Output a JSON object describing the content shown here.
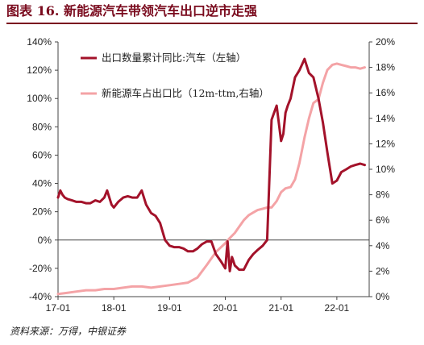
{
  "title": "图表 16. 新能源汽车带领汽车出口逆市走强",
  "source": "资料来源：万得，中银证券",
  "chart_data": {
    "type": "line",
    "x_tick_labels": [
      "17-01",
      "18-01",
      "19-01",
      "20-01",
      "21-01",
      "22-01"
    ],
    "y_left": {
      "min": -40,
      "max": 140,
      "step": 20,
      "unit": "%"
    },
    "y_right": {
      "min": 0,
      "max": 20,
      "step": 2,
      "unit": "%"
    },
    "grid": false,
    "legend_position": "top-center",
    "series": [
      {
        "name": "出口数量累计同比:汽车（左轴）",
        "axis": "left",
        "color": "#a3122a",
        "x": [
          2017.0,
          2017.04,
          2017.08,
          2017.12,
          2017.17,
          2017.25,
          2017.33,
          2017.42,
          2017.5,
          2017.58,
          2017.67,
          2017.75,
          2017.83,
          2017.88,
          2017.96,
          2018.0,
          2018.04,
          2018.08,
          2018.17,
          2018.25,
          2018.33,
          2018.42,
          2018.5,
          2018.58,
          2018.67,
          2018.75,
          2018.83,
          2018.92,
          2019.0,
          2019.08,
          2019.17,
          2019.25,
          2019.33,
          2019.42,
          2019.5,
          2019.58,
          2019.67,
          2019.75,
          2019.83,
          2019.92,
          2020.0,
          2020.04,
          2020.08,
          2020.12,
          2020.17,
          2020.25,
          2020.33,
          2020.42,
          2020.5,
          2020.58,
          2020.67,
          2020.75,
          2020.83,
          2020.92,
          2021.0,
          2021.04,
          2021.08,
          2021.12,
          2021.17,
          2021.25,
          2021.33,
          2021.42,
          2021.5,
          2021.58,
          2021.67,
          2021.75,
          2021.83,
          2021.92,
          2022.0,
          2022.08,
          2022.17,
          2022.25,
          2022.33,
          2022.42,
          2022.5
        ],
        "y": [
          30,
          35,
          32,
          30,
          29,
          28,
          27,
          27,
          26,
          26,
          28,
          27,
          30,
          35,
          25,
          23,
          25,
          27,
          30,
          31,
          30,
          30,
          35,
          25,
          19,
          17,
          12,
          0,
          -4,
          -5,
          -5,
          -6,
          -8,
          -8,
          -6,
          -3,
          -1,
          -1,
          -10,
          -15,
          -20,
          -1,
          -22,
          -12,
          -18,
          -21,
          -21,
          -14,
          -10,
          -7,
          -4,
          0,
          85,
          95,
          70,
          75,
          90,
          95,
          100,
          115,
          120,
          128,
          118,
          115,
          100,
          83,
          62,
          40,
          42,
          48,
          50,
          52,
          53,
          54,
          53
        ],
        "y_precise_note": ""
      },
      {
        "name": "新能源车占出口比（12m-ttm,右轴）",
        "axis": "right",
        "color": "#f4a3a6",
        "x": [
          2017.0,
          2017.17,
          2017.33,
          2017.5,
          2017.67,
          2017.83,
          2018.0,
          2018.17,
          2018.33,
          2018.5,
          2018.67,
          2018.83,
          2019.0,
          2019.17,
          2019.33,
          2019.5,
          2019.67,
          2019.83,
          2020.0,
          2020.08,
          2020.17,
          2020.25,
          2020.33,
          2020.42,
          2020.5,
          2020.58,
          2020.67,
          2020.75,
          2020.83,
          2020.92,
          2021.0,
          2021.08,
          2021.17,
          2021.25,
          2021.33,
          2021.42,
          2021.5,
          2021.58,
          2021.67,
          2021.75,
          2021.83,
          2021.92,
          2022.0,
          2022.08,
          2022.17,
          2022.25,
          2022.33,
          2022.42,
          2022.5
        ],
        "y": [
          0.2,
          0.3,
          0.4,
          0.5,
          0.5,
          0.6,
          0.6,
          0.7,
          0.8,
          0.8,
          0.7,
          0.8,
          0.9,
          1.0,
          1.1,
          1.5,
          2.5,
          3.5,
          4.2,
          4.6,
          5.0,
          5.5,
          6.0,
          6.4,
          6.6,
          6.8,
          6.9,
          7.0,
          7.0,
          7.5,
          8.2,
          8.5,
          8.6,
          9.2,
          10.5,
          12.5,
          14.0,
          15.2,
          15.5,
          16.8,
          17.8,
          18.2,
          18.3,
          18.2,
          18.1,
          18.0,
          18.0,
          17.9,
          18.0
        ]
      }
    ]
  }
}
